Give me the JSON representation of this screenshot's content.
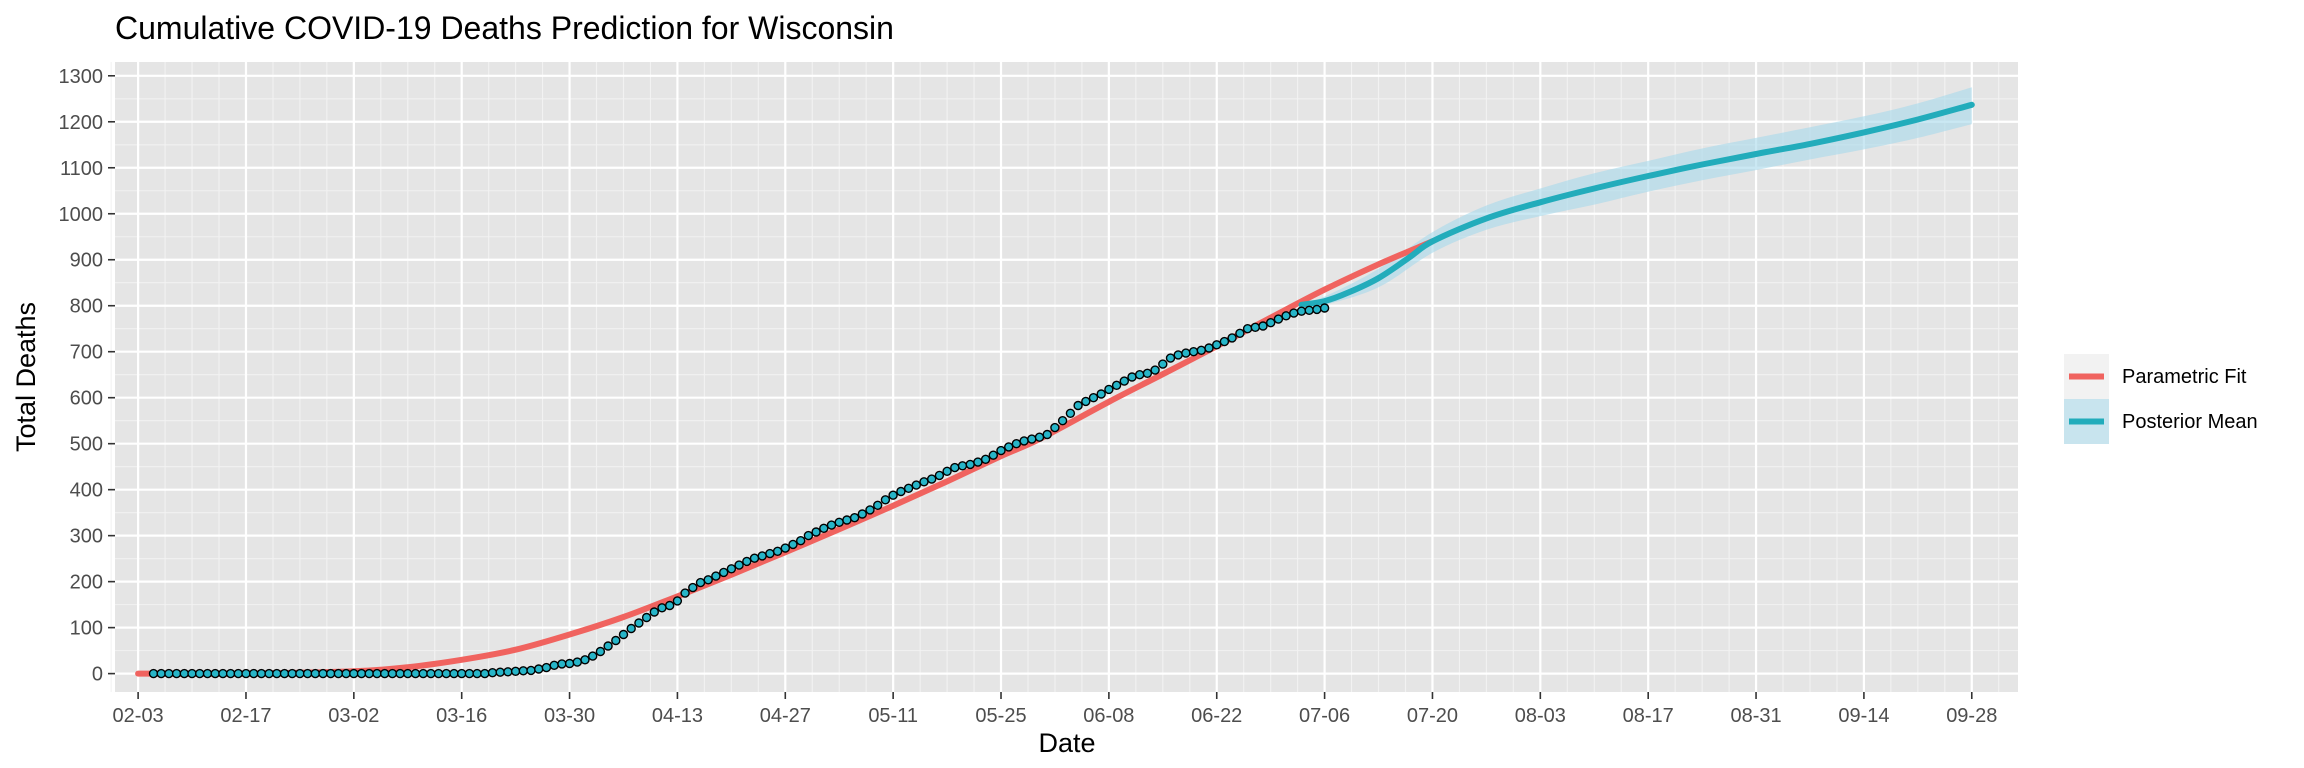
{
  "chart_data": {
    "type": "line",
    "title": "Cumulative COVID-19 Deaths Prediction for Wisconsin",
    "xlabel": "Date",
    "ylabel": "Total Deaths",
    "x_axis": {
      "unit": "date (month-day, 2020)",
      "range": [
        "01-31",
        "10-04"
      ],
      "tick_labels": [
        "02-03",
        "02-17",
        "03-02",
        "03-16",
        "03-30",
        "04-13",
        "04-27",
        "05-11",
        "05-25",
        "06-08",
        "06-22",
        "07-06",
        "07-20",
        "08-03",
        "08-17",
        "08-31",
        "09-14",
        "09-28"
      ]
    },
    "y_axis": {
      "range": [
        -40,
        1330
      ],
      "ticks": [
        0,
        100,
        200,
        300,
        400,
        500,
        600,
        700,
        800,
        900,
        1000,
        1100,
        1200,
        1300
      ]
    },
    "grid": true,
    "background": "#e5e5e5",
    "legend_position": "right",
    "colors": {
      "parametric": "#f0635f",
      "posterior": "#22acbb",
      "band": "#a6d8eb",
      "points_fill": "#27b5c8",
      "points_edge": "#000000"
    },
    "series": [
      {
        "name": "Parametric Fit",
        "kind": "line",
        "points": [
          [
            "02-03",
            0
          ],
          [
            "02-17",
            0
          ],
          [
            "03-02",
            5
          ],
          [
            "03-09",
            14
          ],
          [
            "03-16",
            30
          ],
          [
            "03-23",
            52
          ],
          [
            "03-30",
            85
          ],
          [
            "04-06",
            123
          ],
          [
            "04-13",
            168
          ],
          [
            "04-20",
            215
          ],
          [
            "04-27",
            264
          ],
          [
            "05-04",
            314
          ],
          [
            "05-11",
            365
          ],
          [
            "05-18",
            418
          ],
          [
            "05-25",
            473
          ],
          [
            "05-30",
            510
          ],
          [
            "06-08",
            591
          ],
          [
            "06-15",
            651
          ],
          [
            "06-22",
            712
          ],
          [
            "06-29",
            774
          ],
          [
            "07-06",
            835
          ],
          [
            "07-13",
            890
          ],
          [
            "07-20",
            940
          ]
        ]
      },
      {
        "name": "Posterior Mean",
        "kind": "line",
        "points": [
          [
            "07-03",
            802
          ],
          [
            "07-06",
            810
          ],
          [
            "07-09",
            828
          ],
          [
            "07-13",
            860
          ],
          [
            "07-17",
            905
          ],
          [
            "07-20",
            940
          ],
          [
            "07-27",
            990
          ],
          [
            "08-03",
            1025
          ],
          [
            "08-10",
            1055
          ],
          [
            "08-17",
            1082
          ],
          [
            "08-24",
            1107
          ],
          [
            "08-31",
            1130
          ],
          [
            "09-07",
            1152
          ],
          [
            "09-14",
            1177
          ],
          [
            "09-21",
            1205
          ],
          [
            "09-28",
            1237
          ]
        ]
      },
      {
        "name": "posterior band",
        "kind": "band",
        "upper": [
          [
            "07-03",
            805
          ],
          [
            "07-06",
            820
          ],
          [
            "07-13",
            880
          ],
          [
            "07-20",
            960
          ],
          [
            "07-27",
            1018
          ],
          [
            "08-03",
            1055
          ],
          [
            "08-10",
            1088
          ],
          [
            "08-17",
            1115
          ],
          [
            "08-24",
            1142
          ],
          [
            "08-31",
            1165
          ],
          [
            "09-07",
            1188
          ],
          [
            "09-14",
            1212
          ],
          [
            "09-21",
            1240
          ],
          [
            "09-28",
            1275
          ]
        ],
        "lower": [
          [
            "07-03",
            799
          ],
          [
            "07-06",
            802
          ],
          [
            "07-13",
            840
          ],
          [
            "07-20",
            915
          ],
          [
            "07-27",
            965
          ],
          [
            "08-03",
            995
          ],
          [
            "08-10",
            1020
          ],
          [
            "08-17",
            1048
          ],
          [
            "08-24",
            1073
          ],
          [
            "08-31",
            1095
          ],
          [
            "09-07",
            1118
          ],
          [
            "09-14",
            1140
          ],
          [
            "09-21",
            1165
          ],
          [
            "09-28",
            1195
          ]
        ]
      },
      {
        "name": "observed",
        "kind": "scatter",
        "points": [
          [
            "02-05",
            0
          ],
          [
            "02-06",
            0
          ],
          [
            "02-07",
            0
          ],
          [
            "02-08",
            0
          ],
          [
            "02-09",
            0
          ],
          [
            "02-10",
            0
          ],
          [
            "02-11",
            0
          ],
          [
            "02-12",
            0
          ],
          [
            "02-13",
            0
          ],
          [
            "02-14",
            0
          ],
          [
            "02-15",
            0
          ],
          [
            "02-16",
            0
          ],
          [
            "02-17",
            0
          ],
          [
            "02-18",
            0
          ],
          [
            "02-19",
            0
          ],
          [
            "02-20",
            0
          ],
          [
            "02-21",
            0
          ],
          [
            "02-22",
            0
          ],
          [
            "02-23",
            0
          ],
          [
            "02-24",
            0
          ],
          [
            "02-25",
            0
          ],
          [
            "02-26",
            0
          ],
          [
            "02-27",
            0
          ],
          [
            "02-28",
            0
          ],
          [
            "02-29",
            0
          ],
          [
            "03-01",
            0
          ],
          [
            "03-02",
            0
          ],
          [
            "03-03",
            0
          ],
          [
            "03-04",
            0
          ],
          [
            "03-05",
            0
          ],
          [
            "03-06",
            0
          ],
          [
            "03-07",
            0
          ],
          [
            "03-08",
            0
          ],
          [
            "03-09",
            0
          ],
          [
            "03-10",
            0
          ],
          [
            "03-11",
            0
          ],
          [
            "03-12",
            0
          ],
          [
            "03-13",
            0
          ],
          [
            "03-14",
            0
          ],
          [
            "03-15",
            0
          ],
          [
            "03-16",
            0
          ],
          [
            "03-17",
            0
          ],
          [
            "03-18",
            0
          ],
          [
            "03-19",
            0
          ],
          [
            "03-20",
            2
          ],
          [
            "03-21",
            3
          ],
          [
            "03-22",
            4
          ],
          [
            "03-23",
            5
          ],
          [
            "03-24",
            6
          ],
          [
            "03-25",
            7
          ],
          [
            "03-26",
            10
          ],
          [
            "03-27",
            13
          ],
          [
            "03-28",
            18
          ],
          [
            "03-29",
            21
          ],
          [
            "03-30",
            22
          ],
          [
            "03-31",
            25
          ],
          [
            "04-01",
            30
          ],
          [
            "04-02",
            38
          ],
          [
            "04-03",
            48
          ],
          [
            "04-04",
            60
          ],
          [
            "04-05",
            72
          ],
          [
            "04-06",
            85
          ],
          [
            "04-07",
            98
          ],
          [
            "04-08",
            110
          ],
          [
            "04-09",
            122
          ],
          [
            "04-10",
            134
          ],
          [
            "04-11",
            143
          ],
          [
            "04-12",
            148
          ],
          [
            "04-13",
            158
          ],
          [
            "04-14",
            175
          ],
          [
            "04-15",
            187
          ],
          [
            "04-16",
            198
          ],
          [
            "04-17",
            204
          ],
          [
            "04-18",
            212
          ],
          [
            "04-19",
            220
          ],
          [
            "04-20",
            228
          ],
          [
            "04-21",
            236
          ],
          [
            "04-22",
            244
          ],
          [
            "04-23",
            251
          ],
          [
            "04-24",
            256
          ],
          [
            "04-25",
            261
          ],
          [
            "04-26",
            266
          ],
          [
            "04-27",
            273
          ],
          [
            "04-28",
            281
          ],
          [
            "04-29",
            289
          ],
          [
            "04-30",
            300
          ],
          [
            "05-01",
            308
          ],
          [
            "05-02",
            316
          ],
          [
            "05-03",
            323
          ],
          [
            "05-04",
            329
          ],
          [
            "05-05",
            334
          ],
          [
            "05-06",
            339
          ],
          [
            "05-07",
            347
          ],
          [
            "05-08",
            356
          ],
          [
            "05-09",
            366
          ],
          [
            "05-10",
            378
          ],
          [
            "05-11",
            388
          ],
          [
            "05-12",
            396
          ],
          [
            "05-13",
            403
          ],
          [
            "05-14",
            410
          ],
          [
            "05-15",
            417
          ],
          [
            "05-16",
            423
          ],
          [
            "05-17",
            431
          ],
          [
            "05-18",
            440
          ],
          [
            "05-19",
            448
          ],
          [
            "05-20",
            452
          ],
          [
            "05-21",
            455
          ],
          [
            "05-22",
            460
          ],
          [
            "05-23",
            466
          ],
          [
            "05-24",
            475
          ],
          [
            "05-25",
            485
          ],
          [
            "05-26",
            493
          ],
          [
            "05-27",
            500
          ],
          [
            "05-28",
            506
          ],
          [
            "05-29",
            510
          ],
          [
            "05-30",
            514
          ],
          [
            "05-31",
            520
          ],
          [
            "06-01",
            535
          ],
          [
            "06-02",
            550
          ],
          [
            "06-03",
            566
          ],
          [
            "06-04",
            583
          ],
          [
            "06-05",
            592
          ],
          [
            "06-06",
            600
          ],
          [
            "06-07",
            608
          ],
          [
            "06-08",
            618
          ],
          [
            "06-09",
            627
          ],
          [
            "06-10",
            636
          ],
          [
            "06-11",
            645
          ],
          [
            "06-12",
            650
          ],
          [
            "06-13",
            653
          ],
          [
            "06-14",
            660
          ],
          [
            "06-15",
            673
          ],
          [
            "06-16",
            686
          ],
          [
            "06-17",
            693
          ],
          [
            "06-18",
            697
          ],
          [
            "06-19",
            700
          ],
          [
            "06-20",
            703
          ],
          [
            "06-21",
            708
          ],
          [
            "06-22",
            715
          ],
          [
            "06-23",
            722
          ],
          [
            "06-24",
            730
          ],
          [
            "06-25",
            740
          ],
          [
            "06-26",
            750
          ],
          [
            "06-27",
            753
          ],
          [
            "06-28",
            756
          ],
          [
            "06-29",
            763
          ],
          [
            "06-30",
            771
          ],
          [
            "07-01",
            778
          ],
          [
            "07-02",
            784
          ],
          [
            "07-03",
            788
          ],
          [
            "07-04",
            790
          ],
          [
            "07-05",
            792
          ],
          [
            "07-06",
            795
          ]
        ]
      }
    ]
  }
}
